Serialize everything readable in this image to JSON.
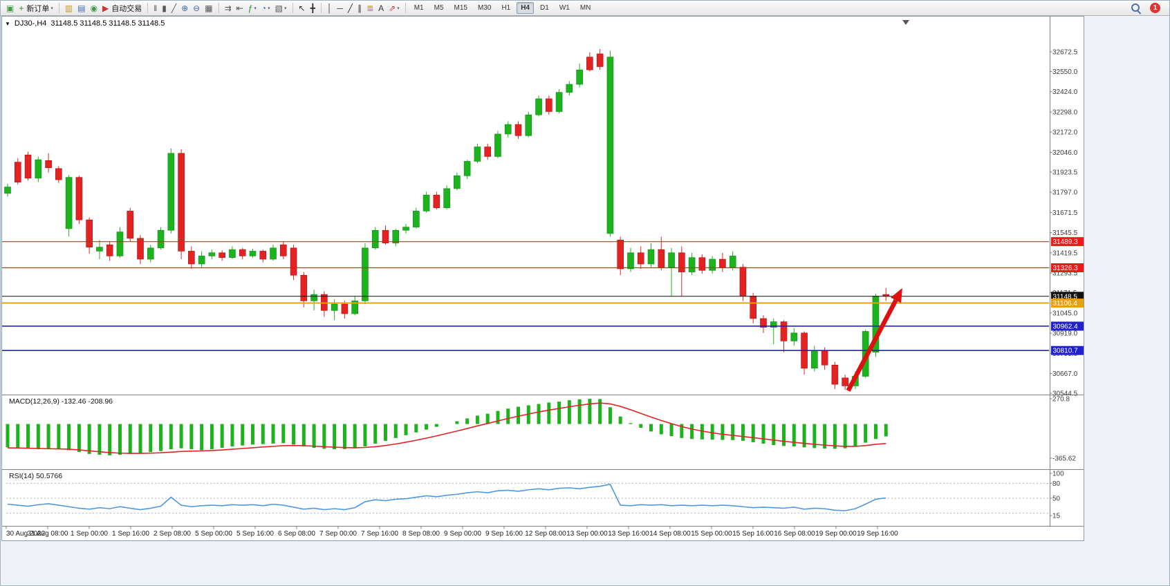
{
  "window": {
    "app": "MetaTrader 4"
  },
  "toolbar": {
    "new_order_label": "新订单",
    "auto_trading_label": "自动交易",
    "timeframes": [
      "M1",
      "M5",
      "M15",
      "M30",
      "H1",
      "H4",
      "D1",
      "W1",
      "MN"
    ],
    "active_timeframe": "H4",
    "right": {
      "search_icon": "search-icon",
      "notification_count": "1"
    },
    "items": [
      {
        "name": "chart-window-button",
        "icon": "chart-window-icon",
        "glyph": "▣",
        "color": "#3f9b3f"
      },
      {
        "name": "new-order-button",
        "icon": "new-order-icon",
        "glyph": "+",
        "color": "#2a8a2a",
        "label": "新订单",
        "caret": true
      },
      {
        "sep": true
      },
      {
        "name": "profiles-button",
        "icon": "profiles-icon",
        "glyph": "▥",
        "color": "#c8962a"
      },
      {
        "name": "market-watch-button",
        "icon": "market-watch-icon",
        "glyph": "▤",
        "color": "#4668b0"
      },
      {
        "name": "navigator-button",
        "icon": "navigator-icon",
        "glyph": "◉",
        "color": "#3f9b3f"
      },
      {
        "name": "auto-trading-button",
        "icon": "auto-trading-icon",
        "glyph": "▶",
        "color": "#cc3333",
        "label": "自动交易"
      },
      {
        "sep": true
      },
      {
        "name": "bar-chart-button",
        "icon": "bar-chart-icon",
        "glyph": "‖",
        "color": "#555555"
      },
      {
        "name": "candlestick-chart-button",
        "icon": "candlestick-chart-icon",
        "glyph": "▮",
        "color": "#555555"
      },
      {
        "name": "line-chart-button",
        "icon": "line-chart-icon",
        "glyph": "╱",
        "color": "#555555"
      },
      {
        "name": "zoom-in-button",
        "icon": "zoom-in-icon",
        "glyph": "⊕",
        "color": "#4668b0"
      },
      {
        "name": "zoom-out-button",
        "icon": "zoom-out-icon",
        "glyph": "⊖",
        "color": "#4668b0"
      },
      {
        "name": "tile-windows-button",
        "icon": "tile-windows-icon",
        "glyph": "▦",
        "color": "#555555"
      },
      {
        "sep": true
      },
      {
        "name": "auto-scroll-button",
        "icon": "auto-scroll-icon",
        "glyph": "⇉",
        "color": "#555555"
      },
      {
        "name": "chart-shift-button",
        "icon": "chart-shift-icon",
        "glyph": "⇤",
        "color": "#555555"
      },
      {
        "name": "indicators-button",
        "icon": "indicators-icon",
        "glyph": "ƒ",
        "color": "#2a8a2a",
        "caret": true
      },
      {
        "name": "periods-button",
        "icon": "periods-icon",
        "glyph": "◔",
        "color": "#4668b0",
        "caret": true
      },
      {
        "name": "templates-button",
        "icon": "templates-icon",
        "glyph": "▧",
        "color": "#555555",
        "caret": true
      },
      {
        "sep": true
      },
      {
        "name": "cursor-button",
        "icon": "cursor-icon",
        "glyph": "↖",
        "color": "#333333"
      },
      {
        "name": "crosshair-button",
        "icon": "crosshair-icon",
        "glyph": "╋",
        "color": "#333333"
      },
      {
        "sep": true
      },
      {
        "name": "vertical-line-button",
        "icon": "vertical-line-icon",
        "glyph": "│",
        "color": "#333333"
      },
      {
        "name": "horizontal-line-button",
        "icon": "horizontal-line-icon",
        "glyph": "─",
        "color": "#333333"
      },
      {
        "name": "trendline-button",
        "icon": "trendline-icon",
        "glyph": "╱",
        "color": "#333333"
      },
      {
        "name": "channel-button",
        "icon": "channel-icon",
        "glyph": "∥",
        "color": "#333333"
      },
      {
        "name": "fibonacci-button",
        "icon": "fibonacci-icon",
        "glyph": "≣",
        "color": "#b8860b"
      },
      {
        "name": "text-button",
        "icon": "text-icon",
        "glyph": "A",
        "color": "#333333"
      },
      {
        "name": "arrows-button",
        "icon": "arrows-icon",
        "glyph": "⇗",
        "color": "#cc3333",
        "caret": true
      },
      {
        "sep": true
      }
    ]
  },
  "chart_info": {
    "symbol_period": "DJ30-,H4",
    "ohlc": "31148.5 31148.5 31148.5 31148.5"
  },
  "chart_data": [
    {
      "type": "candlestick",
      "symbol": "DJ30-",
      "timeframe": "H4",
      "bull_color": "#1db31d",
      "bear_color": "#e32222",
      "ylim": [
        30490,
        32730
      ],
      "y_axis_labels": [
        "32672.5",
        "32550.0",
        "32424.0",
        "32298.0",
        "32172.0",
        "32046.0",
        "31923.5",
        "31797.0",
        "31671.5",
        "31545.5",
        "31419.5",
        "31293.5",
        "31171.5",
        "31045.0",
        "30919.0",
        "30793.0",
        "30667.0",
        "30544.5"
      ],
      "x_labels": [
        "30 Aug 2022",
        "31 Aug 08:00",
        "1 Sep 00:00",
        "1 Sep 16:00",
        "2 Sep 08:00",
        "5 Sep 00:00",
        "5 Sep 16:00",
        "6 Sep 08:00",
        "7 Sep 00:00",
        "7 Sep 16:00",
        "8 Sep 08:00",
        "9 Sep 00:00",
        "9 Sep 16:00",
        "12 Sep 08:00",
        "13 Sep 00:00",
        "13 Sep 16:00",
        "14 Sep 08:00",
        "15 Sep 00:00",
        "15 Sep 16:00",
        "16 Sep 08:00",
        "19 Sep 00:00",
        "19 Sep 16:00"
      ],
      "candles": [
        [
          31790,
          31850,
          31770,
          31830
        ],
        [
          31985,
          32010,
          31845,
          31860
        ],
        [
          32030,
          32050,
          31870,
          31885
        ],
        [
          31885,
          32020,
          31860,
          32000
        ],
        [
          31995,
          32040,
          31920,
          31950
        ],
        [
          31945,
          31960,
          31855,
          31875
        ],
        [
          31570,
          31905,
          31520,
          31890
        ],
        [
          31890,
          31900,
          31600,
          31625
        ],
        [
          31625,
          31640,
          31415,
          31455
        ],
        [
          31430,
          31500,
          31380,
          31455
        ],
        [
          31470,
          31490,
          31370,
          31400
        ],
        [
          31400,
          31580,
          31390,
          31550
        ],
        [
          31680,
          31700,
          31490,
          31510
        ],
        [
          31510,
          31530,
          31350,
          31380
        ],
        [
          31380,
          31470,
          31360,
          31450
        ],
        [
          31450,
          31580,
          31440,
          31560
        ],
        [
          31560,
          32070,
          31540,
          32040
        ],
        [
          32040,
          32065,
          31380,
          31430
        ],
        [
          31430,
          31460,
          31320,
          31350
        ],
        [
          31350,
          31430,
          31330,
          31400
        ],
        [
          31400,
          31440,
          31380,
          31420
        ],
        [
          31420,
          31435,
          31370,
          31390
        ],
        [
          31390,
          31460,
          31380,
          31440
        ],
        [
          31440,
          31450,
          31380,
          31400
        ],
        [
          31400,
          31445,
          31390,
          31430
        ],
        [
          31430,
          31440,
          31360,
          31380
        ],
        [
          31380,
          31470,
          31370,
          31450
        ],
        [
          31470,
          31490,
          31380,
          31400
        ],
        [
          31450,
          31470,
          31250,
          31280
        ],
        [
          31280,
          31300,
          31080,
          31120
        ],
        [
          31120,
          31190,
          31060,
          31160
        ],
        [
          31160,
          31180,
          31020,
          31060
        ],
        [
          31060,
          31130,
          31000,
          31100
        ],
        [
          31100,
          31120,
          31010,
          31040
        ],
        [
          31040,
          31150,
          31030,
          31120
        ],
        [
          31120,
          31480,
          31100,
          31450
        ],
        [
          31450,
          31580,
          31440,
          31560
        ],
        [
          31560,
          31590,
          31470,
          31480
        ],
        [
          31480,
          31570,
          31460,
          31560
        ],
        [
          31560,
          31600,
          31540,
          31580
        ],
        [
          31580,
          31700,
          31570,
          31680
        ],
        [
          31680,
          31800,
          31670,
          31780
        ],
        [
          31780,
          31800,
          31690,
          31700
        ],
        [
          31700,
          31840,
          31690,
          31820
        ],
        [
          31820,
          31920,
          31810,
          31900
        ],
        [
          31900,
          32000,
          31880,
          31990
        ],
        [
          31990,
          32100,
          31980,
          32080
        ],
        [
          32080,
          32100,
          32000,
          32020
        ],
        [
          32020,
          32180,
          32010,
          32160
        ],
        [
          32160,
          32240,
          32140,
          32220
        ],
        [
          32220,
          32240,
          32130,
          32150
        ],
        [
          32150,
          32300,
          32140,
          32280
        ],
        [
          32280,
          32400,
          32270,
          32380
        ],
        [
          32380,
          32400,
          32280,
          32300
        ],
        [
          32300,
          32440,
          32290,
          32420
        ],
        [
          32420,
          32490,
          32400,
          32470
        ],
        [
          32470,
          32600,
          32450,
          32560
        ],
        [
          32640,
          32670,
          32550,
          32560
        ],
        [
          32660,
          32690,
          32560,
          32580
        ],
        [
          31540,
          32680,
          31520,
          32640
        ],
        [
          31500,
          31520,
          31280,
          31320
        ],
        [
          31320,
          31450,
          31300,
          31420
        ],
        [
          31420,
          31460,
          31320,
          31350
        ],
        [
          31350,
          31480,
          31330,
          31440
        ],
        [
          31440,
          31520,
          31310,
          31330
        ],
        [
          31330,
          31450,
          31150,
          31420
        ],
        [
          31420,
          31460,
          31150,
          31300
        ],
        [
          31300,
          31420,
          31280,
          31390
        ],
        [
          31390,
          31410,
          31290,
          31310
        ],
        [
          31310,
          31400,
          31290,
          31380
        ],
        [
          31380,
          31420,
          31300,
          31330
        ],
        [
          31330,
          31430,
          31310,
          31400
        ],
        [
          31330,
          31350,
          31120,
          31150
        ],
        [
          31150,
          31170,
          30980,
          31010
        ],
        [
          31010,
          31030,
          30920,
          30955
        ],
        [
          30955,
          31010,
          30850,
          30990
        ],
        [
          30990,
          31000,
          30800,
          30870
        ],
        [
          30870,
          30950,
          30840,
          30920
        ],
        [
          30920,
          30930,
          30660,
          30700
        ],
        [
          30700,
          30840,
          30680,
          30810
        ],
        [
          30810,
          30830,
          30690,
          30720
        ],
        [
          30720,
          30740,
          30570,
          30600
        ],
        [
          30640,
          30660,
          30565,
          30590
        ],
        [
          30590,
          30680,
          30570,
          30650
        ],
        [
          30650,
          30940,
          30640,
          30930
        ],
        [
          30800,
          31165,
          30770,
          31150
        ],
        [
          31160,
          31200,
          31120,
          31148.5
        ]
      ],
      "horizontal_lines": [
        {
          "price": 31489.3,
          "label": "31489.3",
          "color": "#f01818",
          "width": 1.2,
          "role": "resistance-line"
        },
        {
          "price": 31326.3,
          "label": "31326.3",
          "color": "#f01818",
          "width": 1.2,
          "role": "resistance-line"
        },
        {
          "price": 31148.5,
          "label": "31148.5",
          "color": "#111111",
          "width": 1,
          "role": "current-price-line"
        },
        {
          "price": 31106.4,
          "label": "31106.4",
          "color": "#e8a013",
          "width": 2,
          "role": "pivot-line"
        },
        {
          "price": 30962.4,
          "label": "30962.4",
          "color": "#2020cc",
          "width": 1.6,
          "role": "support-line"
        },
        {
          "price": 30810.7,
          "label": "30810.7",
          "color": "#2020cc",
          "width": 1.6,
          "role": "support-line"
        }
      ],
      "trend_arrow": {
        "from_index": 82.3,
        "from_price": 30560,
        "to_index": 87.6,
        "to_price": 31200,
        "color": "#dd1111"
      }
    },
    {
      "type": "macd",
      "label": "MACD(12,26,9) -132.46 -208.96",
      "y_axis_labels": [
        "270.8",
        "-365.62"
      ],
      "y_axis_values": [
        270.8,
        -365.62
      ],
      "histogram_color": "#1db31d",
      "signal_color": "#e32222",
      "histogram": [
        -250,
        -260,
        -265,
        -270,
        -268,
        -272,
        -280,
        -300,
        -320,
        -330,
        -335,
        -330,
        -320,
        -310,
        -300,
        -290,
        -270,
        -260,
        -270,
        -280,
        -270,
        -255,
        -240,
        -230,
        -220,
        -215,
        -210,
        -205,
        -220,
        -240,
        -255,
        -265,
        -270,
        -268,
        -260,
        -240,
        -210,
        -180,
        -150,
        -120,
        -90,
        -60,
        -30,
        0,
        30,
        60,
        90,
        110,
        140,
        165,
        185,
        200,
        215,
        230,
        240,
        255,
        265,
        270,
        268,
        180,
        80,
        10,
        -40,
        -80,
        -110,
        -130,
        -150,
        -160,
        -165,
        -168,
        -170,
        -172,
        -180,
        -195,
        -210,
        -225,
        -235,
        -240,
        -250,
        -258,
        -262,
        -265,
        -260,
        -240,
        -200,
        -160,
        -132.46
      ],
      "signal": [
        -255,
        -257,
        -259,
        -262,
        -264,
        -266,
        -270,
        -277,
        -287,
        -297,
        -306,
        -312,
        -314,
        -314,
        -312,
        -308,
        -301,
        -294,
        -290,
        -288,
        -284,
        -278,
        -270,
        -262,
        -254,
        -246,
        -239,
        -232,
        -230,
        -232,
        -237,
        -243,
        -248,
        -252,
        -254,
        -251,
        -243,
        -230,
        -214,
        -195,
        -174,
        -151,
        -127,
        -101,
        -75,
        -48,
        -20,
        6,
        33,
        59,
        84,
        107,
        129,
        149,
        167,
        185,
        201,
        215,
        225,
        216,
        189,
        153,
        114,
        75,
        38,
        4,
        -27,
        -54,
        -76,
        -94,
        -110,
        -122,
        -134,
        -146,
        -159,
        -172,
        -185,
        -196,
        -207,
        -217,
        -226,
        -234,
        -239,
        -239,
        -231,
        -217,
        -208.96
      ]
    },
    {
      "type": "rsi",
      "label": "RSI(14) 50.5766",
      "y_axis_labels": [
        "100",
        "80",
        "50",
        "15"
      ],
      "y_axis_values": [
        100,
        80,
        50,
        15
      ],
      "levels": [
        80,
        50,
        20
      ],
      "line_color": "#4f97e0",
      "values": [
        38,
        36,
        34,
        37,
        39,
        36,
        33,
        30,
        28,
        31,
        29,
        33,
        30,
        27,
        30,
        34,
        52,
        36,
        33,
        35,
        36,
        35,
        37,
        36,
        37,
        35,
        38,
        36,
        32,
        28,
        30,
        27,
        29,
        27,
        31,
        43,
        47,
        45,
        48,
        49,
        52,
        55,
        53,
        56,
        58,
        61,
        63,
        61,
        65,
        66,
        64,
        67,
        69,
        67,
        70,
        71,
        69,
        72,
        74,
        78,
        36,
        35,
        37,
        36,
        37,
        35,
        36,
        35,
        36,
        35,
        36,
        35,
        33,
        31,
        32,
        31,
        30,
        32,
        28,
        30,
        29,
        26,
        25,
        29,
        38,
        48,
        50.58
      ]
    }
  ]
}
